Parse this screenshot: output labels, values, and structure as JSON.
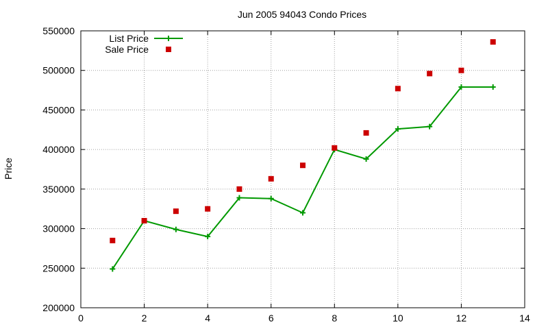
{
  "chart_data": {
    "type": "line",
    "title": "Jun 2005 94043 Condo Prices",
    "xlabel": "",
    "ylabel": "Price",
    "xlim": [
      0,
      14
    ],
    "ylim": [
      200000,
      550000
    ],
    "x_ticks": [
      0,
      2,
      4,
      6,
      8,
      10,
      12,
      14
    ],
    "y_ticks": [
      200000,
      250000,
      300000,
      350000,
      400000,
      450000,
      500000,
      550000
    ],
    "grid": true,
    "legend_position": "top-left",
    "series": [
      {
        "name": "List Price",
        "style": "line-with-plus-markers",
        "color": "#009900",
        "x": [
          1,
          2,
          3,
          4,
          5,
          6,
          7,
          8,
          9,
          10,
          11,
          12,
          13
        ],
        "values": [
          249000,
          310000,
          299000,
          290000,
          339000,
          338000,
          320000,
          400000,
          388000,
          426000,
          429000,
          479000,
          479000
        ]
      },
      {
        "name": "Sale Price",
        "style": "square-points",
        "color": "#cc0000",
        "x": [
          1,
          2,
          3,
          4,
          5,
          6,
          7,
          8,
          9,
          10,
          11,
          12,
          13
        ],
        "values": [
          285000,
          310000,
          322000,
          325000,
          350000,
          363000,
          380000,
          402000,
          421000,
          477000,
          496000,
          500000,
          536000
        ]
      }
    ]
  }
}
